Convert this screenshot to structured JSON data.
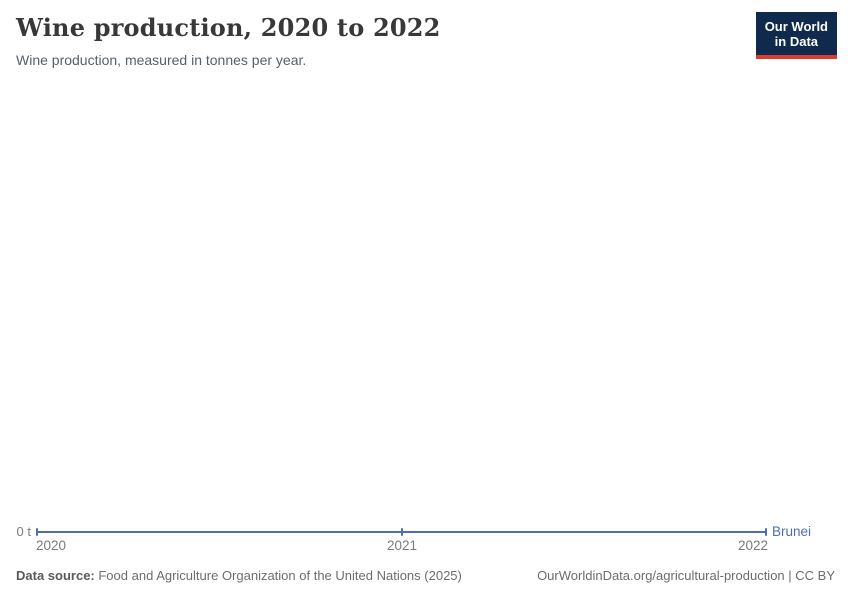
{
  "header": {
    "title": "Wine production, 2020 to 2022",
    "subtitle": "Wine production, measured in tonnes per year.",
    "logo": {
      "line1": "Our World",
      "line2": "in Data"
    }
  },
  "chart_data": {
    "type": "line",
    "title": "Wine production, 2020 to 2022",
    "subtitle": "Wine production, measured in tonnes per year.",
    "x": [
      2020,
      2021,
      2022
    ],
    "series": [
      {
        "name": "Brunei",
        "values": [
          0,
          0,
          0
        ],
        "color": "#4e6ead"
      }
    ],
    "unit": "t",
    "xlabel": "",
    "ylabel": "",
    "y_axis_visible_labels": [
      "0 t"
    ],
    "ylim": [
      0,
      0
    ],
    "xlim": [
      2020,
      2022
    ],
    "grid": false,
    "legend_position": "right-of-line-end",
    "point_markers": true
  },
  "axis": {
    "zero_label": "0 t",
    "years": [
      "2020",
      "2021",
      "2022"
    ],
    "entity_label": "Brunei"
  },
  "footer": {
    "source_label": "Data source:",
    "source_text": " Food and Agriculture Organization of the United Nations (2025)",
    "link_text": "OurWorldinData.org/agricultural-production | CC BY"
  },
  "colors": {
    "line": "#4e6ead",
    "logo_background": "#102a4e",
    "logo_accent": "#dc3b32",
    "title_text": "#383838",
    "axis_text": "#7b7b7b"
  }
}
